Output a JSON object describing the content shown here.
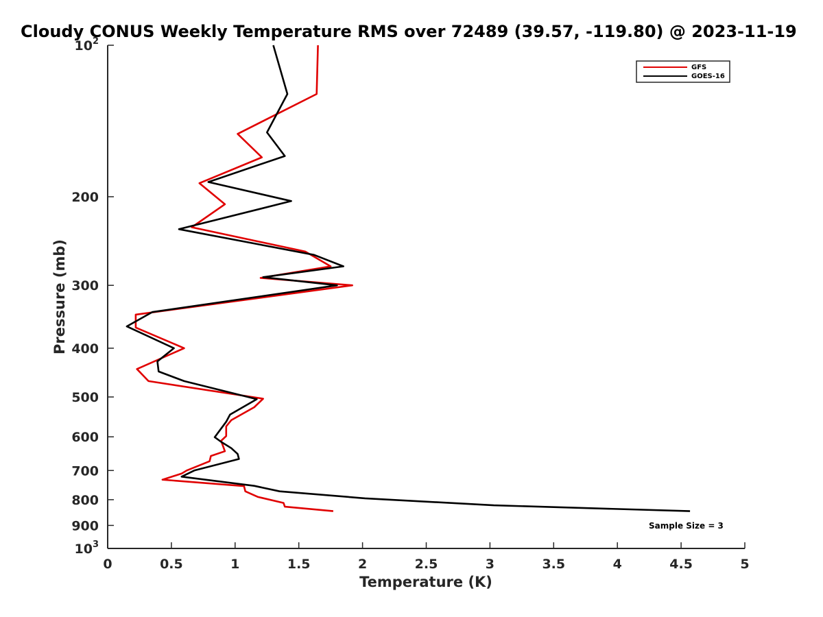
{
  "chart_data": {
    "type": "line",
    "title": "Cloudy CONUS Weekly Temperature RMS over 72489 (39.57, -119.80) @ 2023-11-19",
    "xlabel": "Temperature (K)",
    "ylabel": "Pressure (mb)",
    "xlim": [
      0,
      5
    ],
    "ylim": [
      100,
      1000
    ],
    "y_scale": "log",
    "y_reversed": true,
    "x_ticks": [
      0,
      0.5,
      1,
      1.5,
      2,
      2.5,
      3,
      3.5,
      4,
      4.5,
      5
    ],
    "x_tick_labels": [
      "0",
      "0.5",
      "1",
      "1.5",
      "2",
      "2.5",
      "3",
      "3.5",
      "4",
      "4.5",
      "5"
    ],
    "y_ticks": [
      100,
      200,
      300,
      400,
      500,
      600,
      700,
      800,
      900,
      1000
    ],
    "y_tick_labels": [
      {
        "base": "10",
        "exp": "2"
      },
      {
        "base": "200",
        "exp": ""
      },
      {
        "base": "300",
        "exp": ""
      },
      {
        "base": "400",
        "exp": ""
      },
      {
        "base": "500",
        "exp": ""
      },
      {
        "base": "600",
        "exp": ""
      },
      {
        "base": "700",
        "exp": ""
      },
      {
        "base": "800",
        "exp": ""
      },
      {
        "base": "900",
        "exp": ""
      },
      {
        "base": "10",
        "exp": "3"
      }
    ],
    "grid": false,
    "legend_position": "top-right",
    "annotation": "Sample Size = 3",
    "series": [
      {
        "name": "GFS",
        "color": "#e00000",
        "points": [
          [
            1.65,
            100
          ],
          [
            1.64,
            125
          ],
          [
            1.02,
            150
          ],
          [
            1.21,
            167
          ],
          [
            0.72,
            188
          ],
          [
            0.92,
            207
          ],
          [
            0.66,
            230
          ],
          [
            1.55,
            257
          ],
          [
            1.75,
            275
          ],
          [
            1.2,
            290
          ],
          [
            1.92,
            300
          ],
          [
            0.22,
            343
          ],
          [
            0.22,
            364
          ],
          [
            0.6,
            400
          ],
          [
            0.23,
            440
          ],
          [
            0.32,
            465
          ],
          [
            1.22,
            504
          ],
          [
            1.15,
            524
          ],
          [
            0.97,
            556
          ],
          [
            0.93,
            572
          ],
          [
            0.93,
            598
          ],
          [
            0.89,
            611
          ],
          [
            0.92,
            641
          ],
          [
            0.81,
            655
          ],
          [
            0.8,
            671
          ],
          [
            0.62,
            700
          ],
          [
            0.58,
            710
          ],
          [
            0.43,
            730
          ],
          [
            1.07,
            752
          ],
          [
            1.08,
            770
          ],
          [
            1.18,
            790
          ],
          [
            1.38,
            812
          ],
          [
            1.39,
            826
          ],
          [
            1.77,
            843
          ]
        ]
      },
      {
        "name": "GOES-16",
        "color": "#000000",
        "points": [
          [
            1.3,
            100
          ],
          [
            1.41,
            125
          ],
          [
            1.25,
            149
          ],
          [
            1.39,
            166
          ],
          [
            0.79,
            187
          ],
          [
            1.44,
            204
          ],
          [
            0.56,
            232
          ],
          [
            1.62,
            261
          ],
          [
            1.85,
            275
          ],
          [
            1.22,
            289
          ],
          [
            1.8,
            300
          ],
          [
            0.35,
            339
          ],
          [
            0.15,
            362
          ],
          [
            0.52,
            400
          ],
          [
            0.39,
            425
          ],
          [
            0.4,
            445
          ],
          [
            0.6,
            465
          ],
          [
            1.17,
            505
          ],
          [
            0.96,
            542
          ],
          [
            0.93,
            560
          ],
          [
            0.84,
            601
          ],
          [
            0.89,
            614
          ],
          [
            0.97,
            632
          ],
          [
            1.02,
            649
          ],
          [
            1.03,
            664
          ],
          [
            0.68,
            700
          ],
          [
            0.58,
            720
          ],
          [
            1.15,
            751
          ],
          [
            1.35,
            770
          ],
          [
            2.02,
            795
          ],
          [
            3.03,
            821
          ],
          [
            4.57,
            843
          ]
        ]
      }
    ]
  }
}
